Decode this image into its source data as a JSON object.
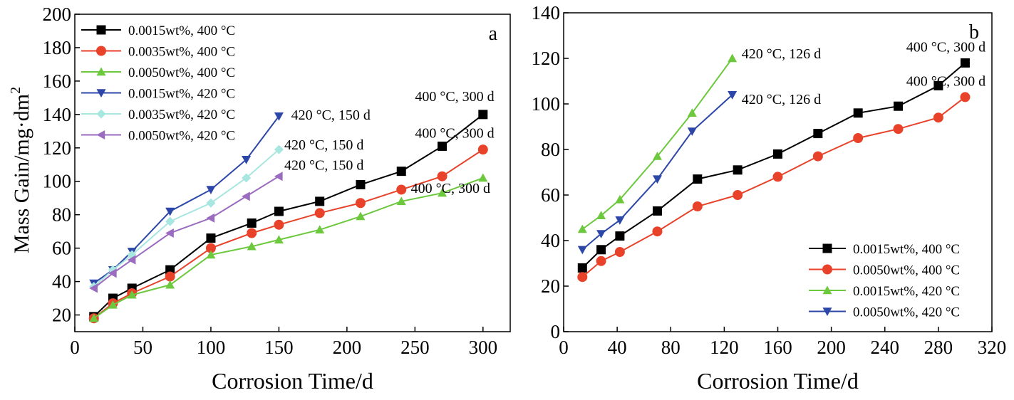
{
  "chart_data": [
    {
      "type": "line",
      "panel_label": "a",
      "xlabel": "Corrosion Time/d",
      "ylabel": "Mass Gain/mg·dm",
      "ylabel_sup": "2",
      "xlim": [
        0,
        320
      ],
      "ylim": [
        10,
        200
      ],
      "xticks": [
        0,
        50,
        100,
        150,
        200,
        250,
        300
      ],
      "yticks": [
        20,
        40,
        60,
        80,
        100,
        120,
        140,
        160,
        180,
        200
      ],
      "legend_position": "top-left",
      "series": [
        {
          "name": "0.0015wt%, 400 °C",
          "color": "#000000",
          "marker": "square",
          "x": [
            14,
            28,
            42,
            70,
            100,
            130,
            150,
            180,
            210,
            240,
            270,
            300
          ],
          "y": [
            19,
            30,
            36,
            47,
            66,
            75,
            82,
            88,
            98,
            106,
            121,
            140
          ]
        },
        {
          "name": "0.0035wt%, 400 °C",
          "color": "#e8432a",
          "marker": "circle",
          "x": [
            14,
            28,
            42,
            70,
            100,
            130,
            150,
            180,
            210,
            240,
            270,
            300
          ],
          "y": [
            18,
            27,
            33,
            43,
            60,
            69,
            74,
            81,
            87,
            95,
            103,
            119
          ]
        },
        {
          "name": "0.0050wt%, 400 °C",
          "color": "#6cc83c",
          "marker": "triangle-up",
          "x": [
            14,
            28,
            42,
            70,
            100,
            130,
            150,
            180,
            210,
            240,
            270,
            300
          ],
          "y": [
            18,
            26,
            32,
            38,
            56,
            61,
            65,
            71,
            79,
            88,
            93,
            102
          ]
        },
        {
          "name": "0.0015wt%, 420 °C",
          "color": "#2c47a8",
          "marker": "triangle-down",
          "x": [
            14,
            28,
            42,
            70,
            100,
            126,
            150
          ],
          "y": [
            39,
            47,
            58,
            82,
            95,
            113,
            139
          ]
        },
        {
          "name": "0.0035wt%, 420 °C",
          "color": "#a8e6e0",
          "marker": "diamond",
          "x": [
            14,
            28,
            42,
            70,
            100,
            126,
            150
          ],
          "y": [
            37,
            47,
            56,
            76,
            87,
            102,
            119
          ]
        },
        {
          "name": "0.0050wt%, 420 °C",
          "color": "#9a6bbf",
          "marker": "triangle-left",
          "x": [
            14,
            28,
            42,
            70,
            100,
            126,
            150
          ],
          "y": [
            36,
            45,
            53,
            69,
            78,
            91,
            103
          ]
        }
      ],
      "annotations": [
        {
          "text": "400 °C, 300 d",
          "x": 250,
          "y": 148
        },
        {
          "text": "400 °C, 300 d",
          "x": 250,
          "y": 126
        },
        {
          "text": "400 °C, 300 d",
          "x": 247,
          "y": 93
        },
        {
          "text": "420 °C, 150 d",
          "x": 159,
          "y": 137
        },
        {
          "text": "420 °C, 150 d",
          "x": 154,
          "y": 119
        },
        {
          "text": "420 °C, 150 d",
          "x": 154,
          "y": 107
        }
      ]
    },
    {
      "type": "line",
      "panel_label": "b",
      "xlabel": "Corrosion Time/d",
      "ylabel": "",
      "xlim": [
        0,
        320
      ],
      "ylim": [
        0,
        140
      ],
      "xticks": [
        0,
        40,
        80,
        120,
        160,
        200,
        240,
        280,
        320
      ],
      "yticks": [
        0,
        20,
        40,
        60,
        80,
        100,
        120,
        140
      ],
      "legend_position": "bottom-right",
      "series": [
        {
          "name": "0.0015wt%, 400 °C",
          "color": "#000000",
          "marker": "square",
          "x": [
            14,
            28,
            42,
            70,
            100,
            130,
            160,
            190,
            220,
            250,
            280,
            300
          ],
          "y": [
            28,
            36,
            42,
            53,
            67,
            71,
            78,
            87,
            96,
            99,
            108,
            118
          ]
        },
        {
          "name": "0.0050wt%, 400 °C",
          "color": "#e8432a",
          "marker": "circle",
          "x": [
            14,
            28,
            42,
            70,
            100,
            130,
            160,
            190,
            220,
            250,
            280,
            300
          ],
          "y": [
            24,
            31,
            35,
            44,
            55,
            60,
            68,
            77,
            85,
            89,
            94,
            103
          ]
        },
        {
          "name": "0.0015wt%, 420 °C",
          "color": "#6cc83c",
          "marker": "triangle-up",
          "x": [
            14,
            28,
            42,
            70,
            96,
            126
          ],
          "y": [
            45,
            51,
            58,
            77,
            96,
            120
          ]
        },
        {
          "name": "0.0050wt%, 420 °C",
          "color": "#2c47a8",
          "marker": "triangle-down",
          "x": [
            14,
            28,
            42,
            70,
            96,
            126
          ],
          "y": [
            36,
            43,
            49,
            67,
            88,
            104
          ]
        }
      ],
      "annotations": [
        {
          "text": "420 °C, 126 d",
          "x": 133,
          "y": 120
        },
        {
          "text": "420 °C, 126 d",
          "x": 133,
          "y": 100
        },
        {
          "text": "400 °C, 300 d",
          "x": 256,
          "y": 123
        },
        {
          "text": "400 °C, 300 d",
          "x": 256,
          "y": 108
        }
      ]
    }
  ]
}
